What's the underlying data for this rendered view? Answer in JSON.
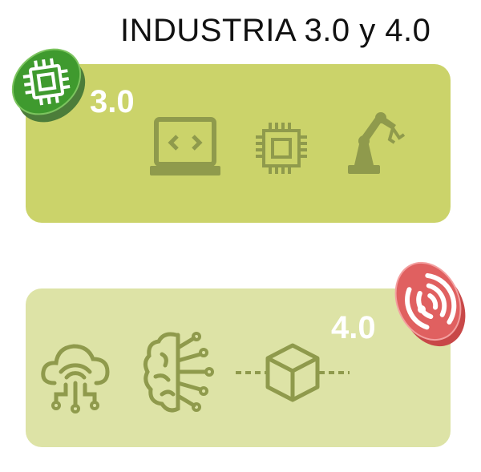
{
  "title": "INDUSTRIA 3.0 y 4.0",
  "sections": [
    {
      "label": "3.0",
      "badge_icon": "microchip-icon",
      "icons": [
        "laptop-code-icon",
        "microchip-icon",
        "robot-arm-icon"
      ]
    },
    {
      "label": "4.0",
      "badge_icon": "wifi-icon",
      "icons": [
        "cloud-network-icon",
        "ai-brain-icon",
        "blockchain-cube-icon"
      ]
    }
  ],
  "colors": {
    "panel_3": "#cbd36a",
    "panel_4": "#dde3a6",
    "icon": "#8f9a4c",
    "badge_green": "#3f9a2e",
    "badge_red": "#e06060"
  }
}
